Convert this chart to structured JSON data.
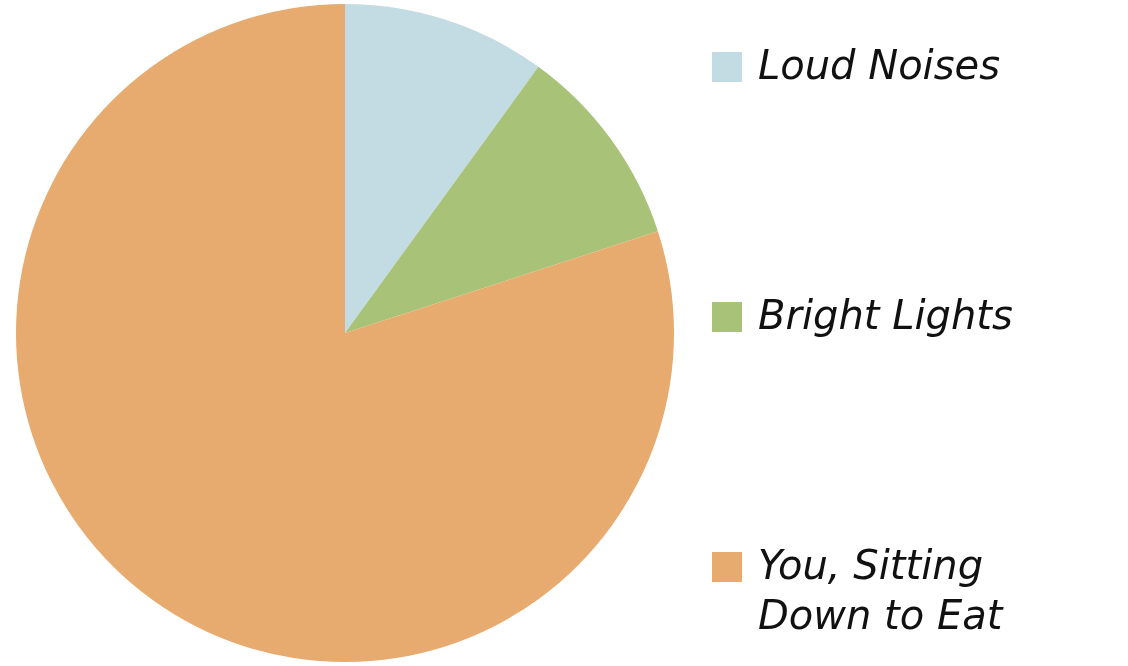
{
  "chart_data": {
    "type": "pie",
    "categories": [
      "Loud Noises",
      "Bright Lights",
      "You, Sitting Down to Eat"
    ],
    "values": [
      10,
      10,
      80
    ],
    "colors": [
      "#c3dbe3",
      "#a8c277",
      "#e8ab6f"
    ],
    "legend": "right"
  }
}
